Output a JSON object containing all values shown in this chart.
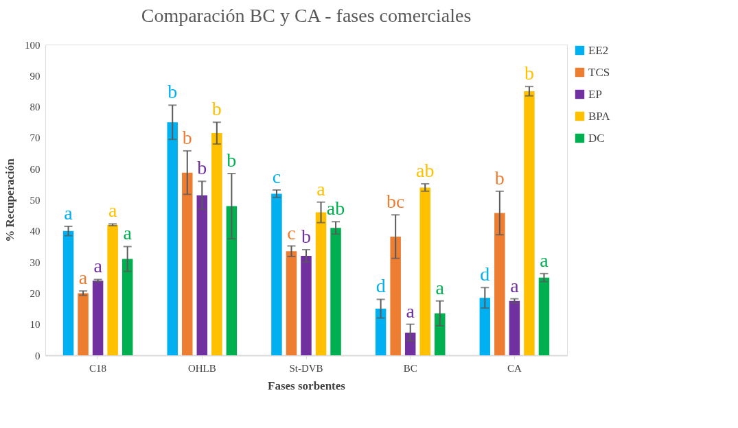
{
  "chart_data": {
    "type": "bar",
    "title": "Comparación BC y CA - fases comerciales",
    "xlabel": "Fases sorbentes",
    "ylabel": "% Recuperación",
    "categories": [
      "C18",
      "OHLB",
      "St-DVB",
      "BC",
      "CA"
    ],
    "series": [
      {
        "name": "EE2",
        "color": "#00b0f0",
        "values": [
          40,
          75,
          52,
          15,
          18.5
        ],
        "errors": [
          1.5,
          5.5,
          1.2,
          3,
          3.3
        ],
        "value_labels": [
          "a",
          "b",
          "c",
          "d",
          "d"
        ]
      },
      {
        "name": "TCS",
        "color": "#ed7d31",
        "values": [
          20,
          58.8,
          33.5,
          38.2,
          45.8
        ],
        "errors": [
          0.7,
          7,
          1.7,
          7,
          7
        ],
        "value_labels": [
          "a",
          "b",
          "c",
          "bc",
          "b"
        ]
      },
      {
        "name": "EP",
        "color": "#7030a0",
        "values": [
          24,
          51.5,
          32,
          7.3,
          17.5
        ],
        "errors": [
          0.4,
          4.5,
          2,
          2.7,
          0.7
        ],
        "value_labels": [
          "a",
          "b",
          "b",
          "a",
          "a"
        ]
      },
      {
        "name": "BPA",
        "color": "#ffc000",
        "values": [
          42,
          71.5,
          46,
          54,
          85
        ],
        "errors": [
          0.3,
          3.5,
          3.3,
          1.2,
          1.5
        ],
        "value_labels": [
          "a",
          "b",
          "a",
          "ab",
          "b"
        ]
      },
      {
        "name": "DC",
        "color": "#00b050",
        "values": [
          31,
          48,
          41,
          13.5,
          25
        ],
        "errors": [
          4,
          10.5,
          2,
          4,
          1.3
        ],
        "value_labels": [
          "a",
          "b",
          "ab",
          "a",
          "a"
        ]
      }
    ],
    "ylim": [
      0,
      100
    ],
    "yticks": [
      0,
      10,
      20,
      30,
      40,
      50,
      60,
      70,
      80,
      90,
      100
    ],
    "grid": false,
    "legend": "right"
  }
}
